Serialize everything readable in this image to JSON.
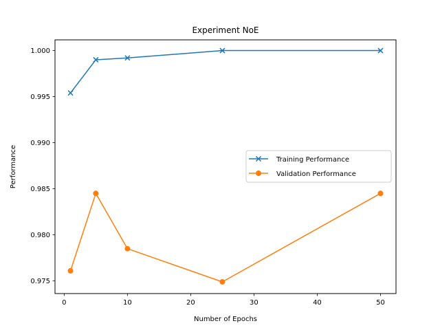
{
  "chart_data": {
    "type": "line",
    "title": "Experiment NoE",
    "xlabel": "Number of Epochs",
    "ylabel": "Performance",
    "xlim": [
      -1.45,
      52.45
    ],
    "ylim": [
      0.97363,
      1.00116
    ],
    "x_ticks": [
      0,
      10,
      20,
      30,
      40,
      50
    ],
    "y_ticks": [
      0.975,
      0.98,
      0.985,
      0.99,
      0.995,
      1.0
    ],
    "y_tick_labels": [
      "0.975",
      "0.980",
      "0.985",
      "0.990",
      "0.995",
      "1.000"
    ],
    "x": [
      1,
      5,
      10,
      25,
      50
    ],
    "series": [
      {
        "name": "Training Performance",
        "values": [
          0.9954,
          0.999,
          0.9992,
          1.0,
          1.0
        ],
        "color": "#1f77b4",
        "marker": "x"
      },
      {
        "name": "Validation Performance",
        "values": [
          0.9761,
          0.9845,
          0.9785,
          0.9749,
          0.9845
        ],
        "color": "#ff7f0e",
        "marker": "o"
      }
    ],
    "legend_position": "center-right",
    "grid": false
  }
}
